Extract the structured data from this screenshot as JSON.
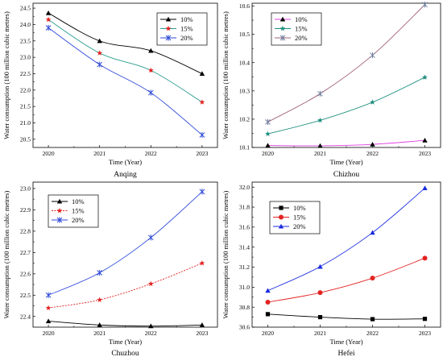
{
  "chart_data": [
    {
      "type": "line",
      "caption": "Anqing",
      "xlabel": "Time (Year)",
      "ylabel": "Water consumption (100 million cubic metres)",
      "x": [
        2020,
        2021,
        2022,
        2023
      ],
      "xticks": [
        "2020",
        "2021",
        "2022",
        "2023"
      ],
      "ylim": [
        20.25,
        24.65
      ],
      "yticks": [
        "20.5",
        "21.0",
        "21.5",
        "22.0",
        "22.5",
        "23.0",
        "23.5",
        "24.0",
        "24.5"
      ],
      "legend_position": "top-right",
      "series": [
        {
          "name": "10%",
          "values": [
            24.35,
            23.5,
            23.2,
            22.5
          ],
          "color": "#000000",
          "marker": "triangle"
        },
        {
          "name": "15%",
          "values": [
            24.15,
            23.13,
            22.6,
            21.63
          ],
          "color": "#2a9d8f",
          "marker_color": "#e32222",
          "marker": "star"
        },
        {
          "name": "20%",
          "values": [
            23.9,
            22.78,
            21.92,
            20.63
          ],
          "color": "#2f4ad8",
          "marker": "asterisk"
        }
      ]
    },
    {
      "type": "line",
      "caption": "Chizhou",
      "xlabel": "Time (Year)",
      "ylabel": "Water consumption (100 million cubic metres)",
      "x": [
        2020,
        2021,
        2022,
        2023
      ],
      "xticks": [
        "2020",
        "2021",
        "2022",
        "2023"
      ],
      "ylim": [
        10.1,
        10.61
      ],
      "yticks": [
        "10.1",
        "10.2",
        "10.3",
        "10.4",
        "10.5",
        "10.6"
      ],
      "legend_position": "top-left",
      "series": [
        {
          "name": "10%",
          "values": [
            10.107,
            10.106,
            10.111,
            10.125
          ],
          "color": "#e040e0",
          "marker_color": "#000000",
          "marker": "triangle"
        },
        {
          "name": "15%",
          "values": [
            10.148,
            10.196,
            10.26,
            10.348
          ],
          "color": "#1f8f7f",
          "marker": "star"
        },
        {
          "name": "20%",
          "values": [
            10.19,
            10.29,
            10.426,
            10.605
          ],
          "color": "#a0607a",
          "marker_color": "#7080a0",
          "marker": "asterisk"
        }
      ]
    },
    {
      "type": "line",
      "caption": "Chuzhou",
      "xlabel": "Time (Year)",
      "ylabel": "Water consumption (100 million cubic metres)",
      "x": [
        2020,
        2021,
        2022,
        2023
      ],
      "xticks": [
        "2020",
        "2021",
        "2022",
        "2023"
      ],
      "ylim": [
        22.35,
        23.03
      ],
      "yticks": [
        "22.4",
        "22.5",
        "22.6",
        "22.7",
        "22.8",
        "22.9",
        "23.0"
      ],
      "legend_position": "top-left",
      "series": [
        {
          "name": "10%",
          "values": [
            22.378,
            22.36,
            22.355,
            22.36
          ],
          "color": "#000000",
          "marker": "triangle"
        },
        {
          "name": "15%",
          "values": [
            22.44,
            22.478,
            22.553,
            22.65
          ],
          "color": "#e32222",
          "marker": "star",
          "dashed": true
        },
        {
          "name": "20%",
          "values": [
            22.5,
            22.605,
            22.77,
            22.985
          ],
          "color": "#2f4ad8",
          "marker": "asterisk"
        }
      ]
    },
    {
      "type": "line",
      "caption": "Hefei",
      "xlabel": "Time (Year)",
      "ylabel": "Water consumption (100 million cubic metres)",
      "x": [
        2020,
        2021,
        2022,
        2023
      ],
      "xticks": [
        "2020",
        "2021",
        "2022",
        "2023"
      ],
      "ylim": [
        30.6,
        32.05
      ],
      "yticks": [
        "30.6",
        "30.8",
        "31.0",
        "31.2",
        "31.4",
        "31.6",
        "31.8",
        "32.0"
      ],
      "legend_position": "top-left",
      "series": [
        {
          "name": "10%",
          "values": [
            30.73,
            30.7,
            30.68,
            30.683
          ],
          "color": "#000000",
          "marker": "square"
        },
        {
          "name": "15%",
          "values": [
            30.85,
            30.945,
            31.09,
            31.29
          ],
          "color": "#e32222",
          "marker": "circle"
        },
        {
          "name": "20%",
          "values": [
            30.965,
            31.205,
            31.545,
            31.99
          ],
          "color": "#1a2be0",
          "marker": "triangle"
        }
      ]
    }
  ]
}
